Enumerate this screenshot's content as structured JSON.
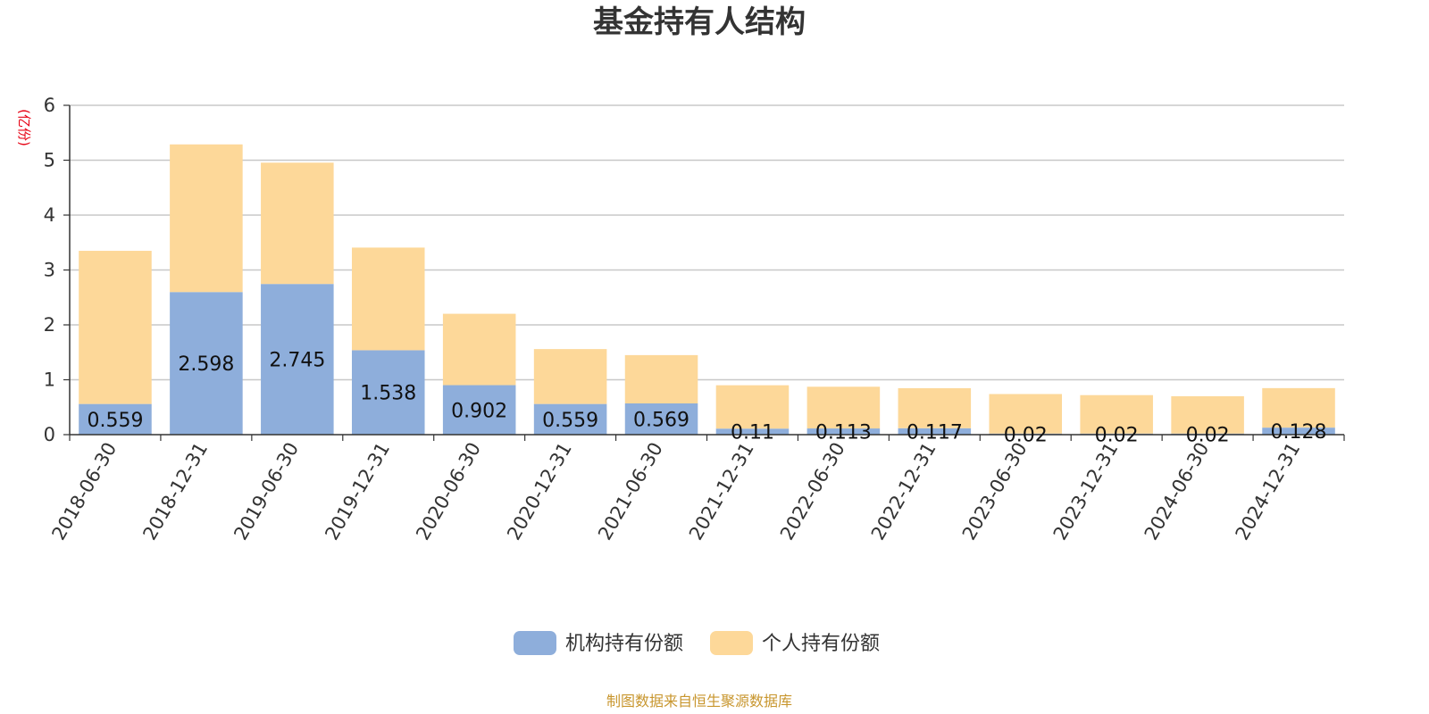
{
  "chart_data": {
    "type": "bar",
    "stacked": true,
    "title": "基金持有人结构",
    "unit_label": "(亿份)",
    "source": "制图数据来自恒生聚源数据库",
    "ylim": [
      0,
      6
    ],
    "yticks": [
      "0",
      "1",
      "2",
      "3",
      "4",
      "5",
      "6"
    ],
    "grid": true,
    "legend_position": "bottom-center",
    "categories": [
      "2018-06-30",
      "2018-12-31",
      "2019-06-30",
      "2019-12-31",
      "2020-06-30",
      "2020-12-31",
      "2021-06-30",
      "2021-12-31",
      "2022-06-30",
      "2022-12-31",
      "2023-06-30",
      "2023-12-31",
      "2024-06-30",
      "2024-12-31"
    ],
    "series": [
      {
        "name": "机构持有份额",
        "color": "#8eaedb",
        "values": [
          0.559,
          2.598,
          2.745,
          1.538,
          0.902,
          0.559,
          0.569,
          0.11,
          0.113,
          0.117,
          0.02,
          0.02,
          0.02,
          0.128
        ],
        "labels": [
          "0.559",
          "2.598",
          "2.745",
          "1.538",
          "0.902",
          "0.559",
          "0.569",
          "0.11",
          "0.113",
          "0.117",
          "0.02",
          "0.02",
          "0.02",
          "0.128"
        ]
      },
      {
        "name": "个人持有份额",
        "color": "#fdd899",
        "values": [
          2.79,
          2.69,
          2.21,
          1.87,
          1.3,
          1.0,
          0.88,
          0.79,
          0.76,
          0.73,
          0.72,
          0.7,
          0.68,
          0.72
        ]
      }
    ]
  }
}
